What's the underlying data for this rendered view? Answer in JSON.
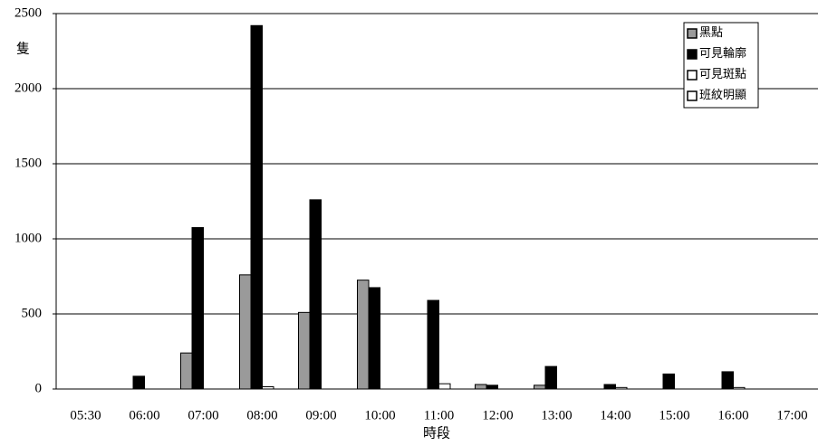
{
  "chart_data": {
    "type": "bar",
    "y_label": "隻",
    "x_label": "時段",
    "categories": [
      "05:30",
      "06:00",
      "07:00",
      "08:00",
      "09:00",
      "10:00",
      "11:00",
      "12:00",
      "13:00",
      "14:00",
      "15:00",
      "16:00",
      "17:00"
    ],
    "series": [
      {
        "name": "黑點",
        "color": "#9a9a9a",
        "values": [
          0,
          0,
          240,
          760,
          510,
          725,
          0,
          30,
          25,
          0,
          0,
          0,
          0
        ]
      },
      {
        "name": "可見輪廓",
        "color": "#000000",
        "values": [
          0,
          85,
          1075,
          2420,
          1260,
          675,
          590,
          25,
          150,
          30,
          100,
          115,
          0
        ]
      },
      {
        "name": "可見斑點",
        "color": "#ffffff",
        "values": [
          0,
          0,
          0,
          15,
          0,
          0,
          35,
          0,
          0,
          10,
          0,
          10,
          0
        ]
      },
      {
        "name": "班紋明顯",
        "color": "#ffffff",
        "values": [
          0,
          0,
          0,
          0,
          0,
          0,
          0,
          0,
          0,
          0,
          0,
          0,
          0
        ]
      }
    ],
    "ylim": [
      0,
      2500
    ],
    "yticks": [
      0,
      500,
      1000,
      1500,
      2000,
      2500
    ],
    "grid": true,
    "legend": "top-right"
  }
}
